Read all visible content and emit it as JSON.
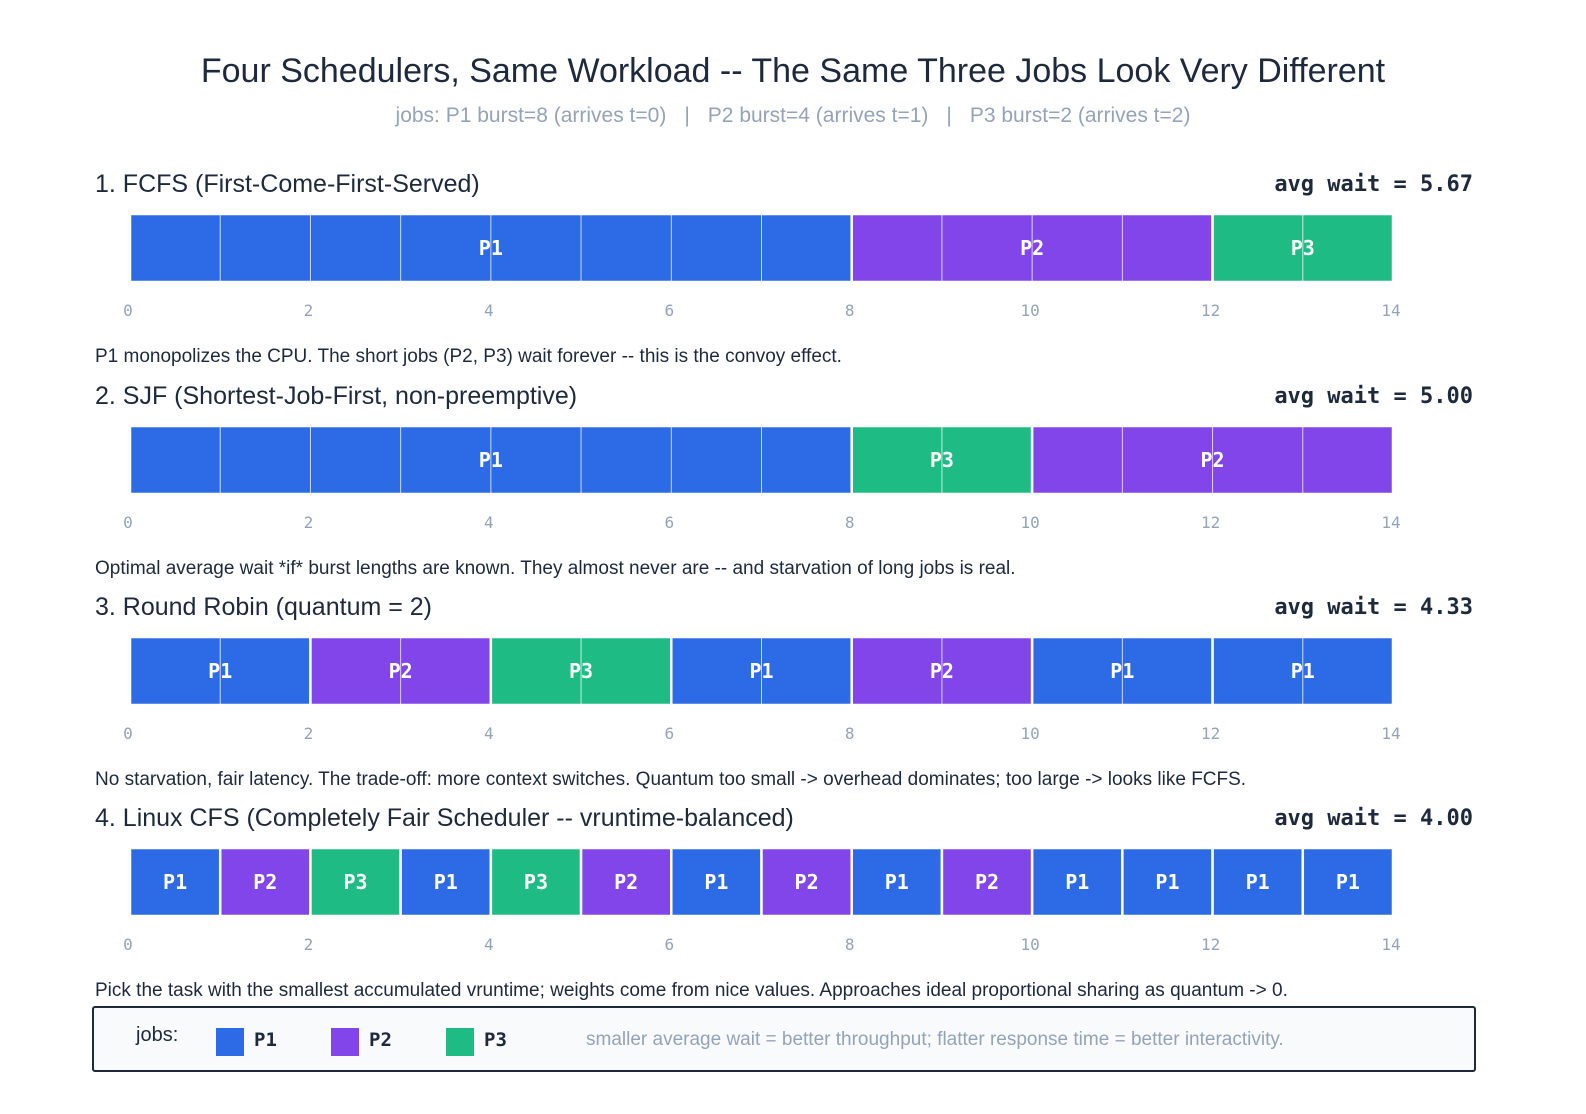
{
  "title": "Four Schedulers, Same Workload -- The Same Three Jobs Look Very Different",
  "subtitle": {
    "parts": [
      "jobs: P1 burst=8 (arrives t=0)",
      "P2 burst=4 (arrives t=1)",
      "P3 burst=2 (arrives t=2)"
    ],
    "separator": "|"
  },
  "colors": {
    "P1": "#2d6be6",
    "P2": "#8145ea",
    "P3": "#1ebc84"
  },
  "chart_data": [
    {
      "type": "gantt",
      "heading": "1.  FCFS  (First-Come-First-Served)",
      "metric": "avg wait = 5.67",
      "caption": "P1 monopolizes the CPU. The short jobs (P2, P3) wait forever -- this is the convoy effect.",
      "xlim": [
        0,
        14
      ],
      "xticks": [
        0,
        2,
        4,
        6,
        8,
        10,
        12,
        14
      ],
      "segments": [
        {
          "job": "P1",
          "start": 0,
          "end": 8
        },
        {
          "job": "P2",
          "start": 8,
          "end": 12
        },
        {
          "job": "P3",
          "start": 12,
          "end": 14
        }
      ]
    },
    {
      "type": "gantt",
      "heading": "2.  SJF  (Shortest-Job-First, non-preemptive)",
      "metric": "avg wait = 5.00",
      "caption": "Optimal average wait *if* burst lengths are known. They almost never are -- and starvation of long jobs is real.",
      "xlim": [
        0,
        14
      ],
      "xticks": [
        0,
        2,
        4,
        6,
        8,
        10,
        12,
        14
      ],
      "segments": [
        {
          "job": "P1",
          "start": 0,
          "end": 8
        },
        {
          "job": "P3",
          "start": 8,
          "end": 10
        },
        {
          "job": "P2",
          "start": 10,
          "end": 14
        }
      ]
    },
    {
      "type": "gantt",
      "heading": "3.  Round Robin  (quantum = 2)",
      "metric": "avg wait = 4.33",
      "caption": "No starvation, fair latency. The trade-off: more context switches. Quantum too small -> overhead dominates; too large -> looks like FCFS.",
      "xlim": [
        0,
        14
      ],
      "xticks": [
        0,
        2,
        4,
        6,
        8,
        10,
        12,
        14
      ],
      "segments": [
        {
          "job": "P1",
          "start": 0,
          "end": 2
        },
        {
          "job": "P2",
          "start": 2,
          "end": 4
        },
        {
          "job": "P3",
          "start": 4,
          "end": 6
        },
        {
          "job": "P1",
          "start": 6,
          "end": 8
        },
        {
          "job": "P2",
          "start": 8,
          "end": 10
        },
        {
          "job": "P1",
          "start": 10,
          "end": 12
        },
        {
          "job": "P1",
          "start": 12,
          "end": 14
        }
      ]
    },
    {
      "type": "gantt",
      "heading": "4.  Linux CFS  (Completely Fair Scheduler -- vruntime-balanced)",
      "metric": "avg wait = 4.00",
      "caption": "Pick the task with the smallest accumulated vruntime; weights come from nice values. Approaches ideal proportional sharing as quantum -> 0.",
      "xlim": [
        0,
        14
      ],
      "xticks": [
        0,
        2,
        4,
        6,
        8,
        10,
        12,
        14
      ],
      "segments": [
        {
          "job": "P1",
          "start": 0,
          "end": 1
        },
        {
          "job": "P2",
          "start": 1,
          "end": 2
        },
        {
          "job": "P3",
          "start": 2,
          "end": 3
        },
        {
          "job": "P1",
          "start": 3,
          "end": 4
        },
        {
          "job": "P3",
          "start": 4,
          "end": 5
        },
        {
          "job": "P2",
          "start": 5,
          "end": 6
        },
        {
          "job": "P1",
          "start": 6,
          "end": 7
        },
        {
          "job": "P2",
          "start": 7,
          "end": 8
        },
        {
          "job": "P1",
          "start": 8,
          "end": 9
        },
        {
          "job": "P2",
          "start": 9,
          "end": 10
        },
        {
          "job": "P1",
          "start": 10,
          "end": 11
        },
        {
          "job": "P1",
          "start": 11,
          "end": 12
        },
        {
          "job": "P1",
          "start": 12,
          "end": 13
        },
        {
          "job": "P1",
          "start": 13,
          "end": 14
        }
      ]
    }
  ],
  "legend": {
    "label": "jobs:",
    "items": [
      "P1",
      "P2",
      "P3"
    ],
    "note": "smaller average wait = better throughput; flatter response time = better interactivity."
  }
}
